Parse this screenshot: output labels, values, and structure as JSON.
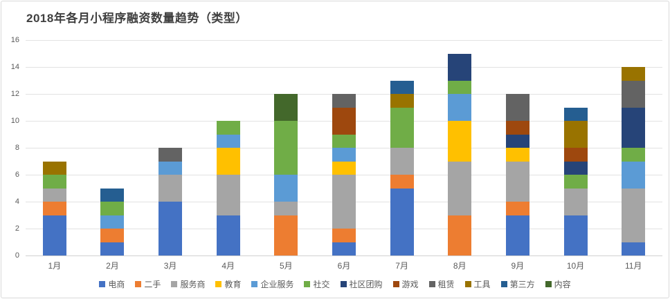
{
  "title": "2018年各月小程序融资数量趋势（类型）",
  "colors": {
    "title_text": "#3f3f3f",
    "axis_text": "#595959",
    "gridline": "#e2e2e2",
    "axis_line": "#d0d0d0",
    "background": "#ffffff",
    "frame_border": "#d9d9d9"
  },
  "chart_data": {
    "type": "bar",
    "stacked": true,
    "title": "2018年各月小程序融资数量趋势（类型）",
    "xlabel": "",
    "ylabel": "",
    "ylim": [
      0,
      16
    ],
    "yticks": [
      0,
      2,
      4,
      6,
      8,
      10,
      12,
      14,
      16
    ],
    "grid": true,
    "legend_position": "bottom",
    "categories": [
      "1月",
      "2月",
      "3月",
      "4月",
      "5月",
      "6月",
      "7月",
      "8月",
      "9月",
      "10月",
      "11月"
    ],
    "series": [
      {
        "name": "电商",
        "color": "#4472C4",
        "values": [
          3,
          1,
          4,
          3,
          0,
          1,
          5,
          0,
          3,
          3,
          1
        ]
      },
      {
        "name": "二手",
        "color": "#ED7D31",
        "values": [
          1,
          1,
          0,
          0,
          3,
          1,
          1,
          3,
          1,
          0,
          0
        ]
      },
      {
        "name": "服务商",
        "color": "#A5A5A5",
        "values": [
          1,
          0,
          2,
          3,
          1,
          4,
          2,
          4,
          3,
          2,
          4
        ]
      },
      {
        "name": "教育",
        "color": "#FFC000",
        "values": [
          0,
          0,
          0,
          2,
          0,
          1,
          0,
          3,
          1,
          0,
          0
        ]
      },
      {
        "name": "企业服务",
        "color": "#5B9BD5",
        "values": [
          0,
          1,
          1,
          1,
          2,
          1,
          0,
          2,
          0,
          0,
          2
        ]
      },
      {
        "name": "社交",
        "color": "#70AD47",
        "values": [
          1,
          1,
          0,
          1,
          4,
          1,
          3,
          1,
          0,
          1,
          1
        ]
      },
      {
        "name": "社区团购",
        "color": "#264478",
        "values": [
          0,
          0,
          0,
          0,
          0,
          0,
          0,
          2,
          1,
          1,
          3
        ]
      },
      {
        "name": "游戏",
        "color": "#9E480E",
        "values": [
          0,
          0,
          0,
          0,
          0,
          2,
          0,
          0,
          1,
          1,
          0
        ]
      },
      {
        "name": "租赁",
        "color": "#636363",
        "values": [
          0,
          0,
          1,
          0,
          0,
          1,
          0,
          0,
          2,
          0,
          2
        ]
      },
      {
        "name": "工具",
        "color": "#997300",
        "values": [
          1,
          0,
          0,
          0,
          0,
          0,
          1,
          0,
          0,
          2,
          1
        ]
      },
      {
        "name": "第三方",
        "color": "#255E91",
        "values": [
          0,
          1,
          0,
          0,
          0,
          0,
          1,
          0,
          0,
          1,
          0
        ]
      },
      {
        "name": "内容",
        "color": "#43682B",
        "values": [
          0,
          0,
          0,
          0,
          2,
          0,
          0,
          0,
          0,
          0,
          0
        ]
      }
    ],
    "totals": [
      7,
      5,
      8,
      10,
      12,
      12,
      13,
      15,
      12,
      11,
      14
    ]
  }
}
